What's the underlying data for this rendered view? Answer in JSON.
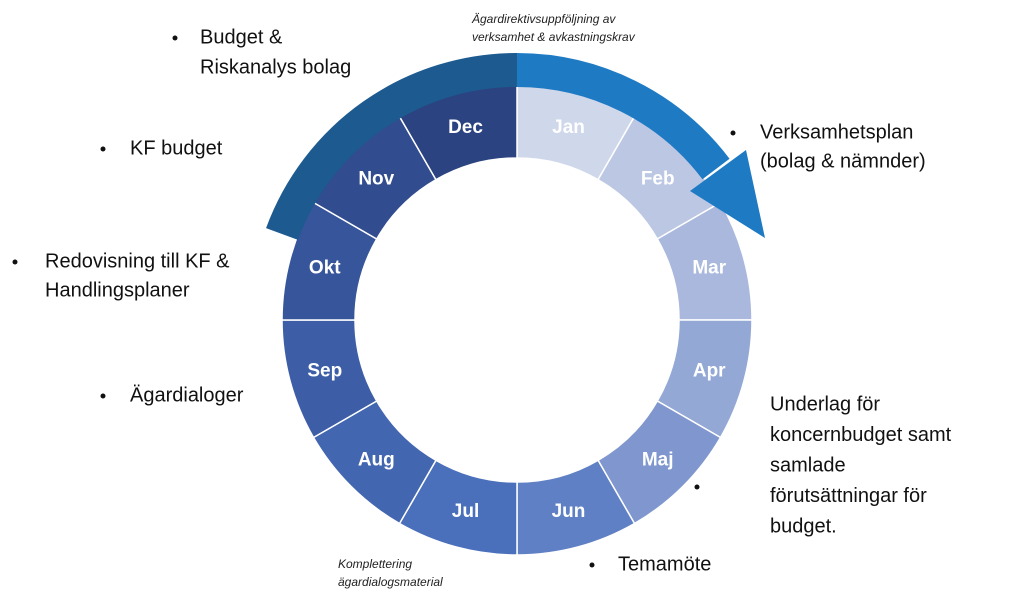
{
  "wheel": {
    "months": [
      {
        "label": "Jan",
        "color": "#cfd7ea"
      },
      {
        "label": "Feb",
        "color": "#bcc7e3"
      },
      {
        "label": "Mar",
        "color": "#a9b8dc"
      },
      {
        "label": "Apr",
        "color": "#94a8d5"
      },
      {
        "label": "Maj",
        "color": "#7f97ce"
      },
      {
        "label": "Jun",
        "color": "#5f80c4"
      },
      {
        "label": "Jul",
        "color": "#4a6fbb"
      },
      {
        "label": "Aug",
        "color": "#4366b0"
      },
      {
        "label": "Sep",
        "color": "#3d5ea6"
      },
      {
        "label": "Okt",
        "color": "#37559b"
      },
      {
        "label": "Nov",
        "color": "#314c8f"
      },
      {
        "label": "Dec",
        "color": "#2b4380"
      }
    ]
  },
  "notes": [
    {
      "lines": [
        "Budget &",
        "Riskanalys bolag"
      ]
    },
    {
      "lines": [
        "KF budget"
      ]
    },
    {
      "lines": [
        "Redovisning till KF &",
        "Handlingsplaner"
      ]
    },
    {
      "lines": [
        "Ägardialoger"
      ]
    },
    {
      "lines": [
        "Verksamhetsplan",
        "(bolag & nämnder)"
      ]
    },
    {
      "lines": [
        "Underlag för",
        "koncernbudget samt",
        "samlade",
        "förutsättningar för",
        "budget."
      ]
    },
    {
      "lines": [
        "Temamöte"
      ]
    }
  ],
  "small_notes": [
    {
      "lines": [
        "Ägardirektivsuppföljning av",
        "verksamhet  & avkastningskrav"
      ]
    },
    {
      "lines": [
        "Komplettering",
        "ägardialogsmaterial"
      ]
    }
  ]
}
